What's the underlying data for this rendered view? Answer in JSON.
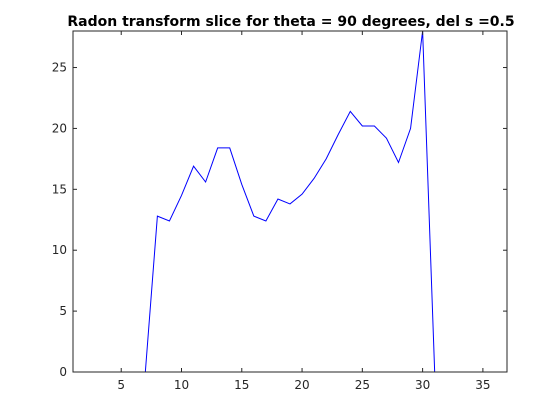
{
  "colors": {
    "background": "#ffffff",
    "axes": "#262626",
    "series": "#0000ff"
  },
  "chart_data": {
    "type": "line",
    "title": "Radon transform slice for theta = 90 degrees, del s =0.5",
    "xlabel": "",
    "ylabel": "",
    "xlim": [
      1,
      37
    ],
    "ylim": [
      0,
      28
    ],
    "grid": false,
    "box": true,
    "xticks": [
      5,
      10,
      15,
      20,
      25,
      30,
      35
    ],
    "yticks": [
      0,
      5,
      10,
      15,
      20,
      25
    ],
    "series": [
      {
        "color": "#0000ff",
        "x": [
          1,
          2,
          3,
          4,
          5,
          6,
          7,
          8,
          9,
          10,
          11,
          12,
          13,
          14,
          15,
          16,
          17,
          18,
          19,
          20,
          21,
          22,
          23,
          24,
          25,
          26,
          27,
          28,
          29,
          30,
          31,
          32,
          33,
          34,
          35,
          36,
          37
        ],
        "y": [
          0,
          0,
          0,
          0,
          0,
          0,
          0,
          12.8,
          12.4,
          14.5,
          16.9,
          15.6,
          18.4,
          18.4,
          15.4,
          12.8,
          12.4,
          14.2,
          13.8,
          14.6,
          15.9,
          17.5,
          19.5,
          21.4,
          20.2,
          20.2,
          19.2,
          17.2,
          20.0,
          28.0,
          0,
          0,
          0,
          0,
          0,
          0,
          0
        ]
      }
    ]
  }
}
